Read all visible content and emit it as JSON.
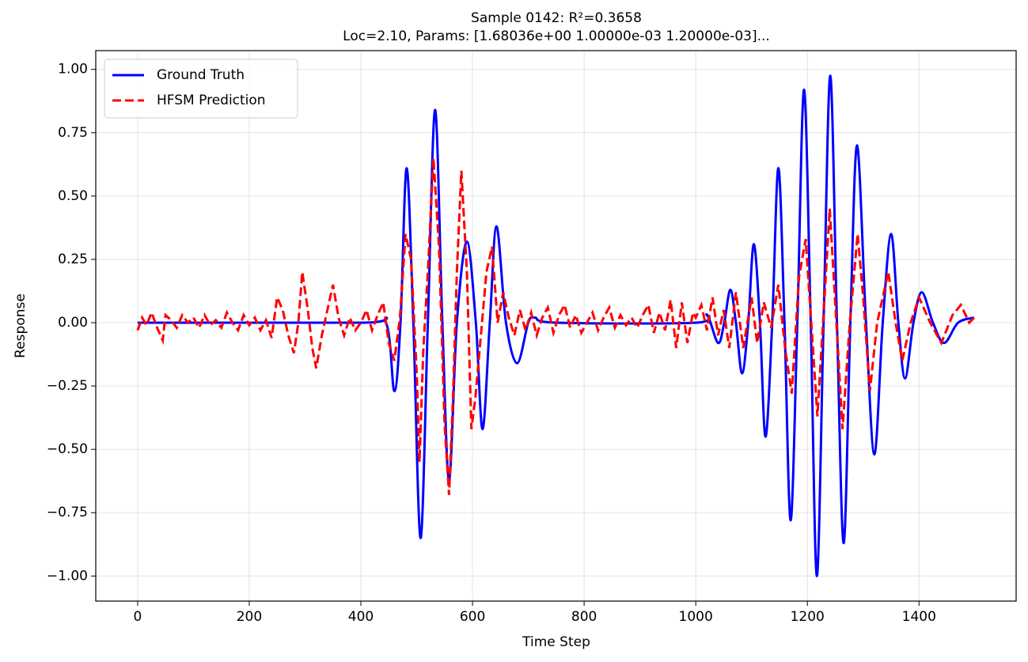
{
  "chart_data": {
    "type": "line",
    "title": "Sample 0142: R²=0.3658",
    "subtitle": "Loc=2.10, Params: [1.68036e+00 1.00000e-03 1.20000e-03]...",
    "x_label": "Time Step",
    "y_label": "Response",
    "xlim": [
      -75,
      1574
    ],
    "ylim": [
      -1.099,
      1.074
    ],
    "xticks": [
      0,
      200,
      400,
      600,
      800,
      1000,
      1200,
      1400
    ],
    "yticks": [
      {
        "value": -1,
        "label": "−1.00"
      },
      {
        "value": -0.75,
        "label": "−0.75"
      },
      {
        "value": -0.5,
        "label": "−0.50"
      },
      {
        "value": -0.25,
        "label": "−0.25"
      },
      {
        "value": 0,
        "label": "0.00"
      },
      {
        "value": 0.25,
        "label": "0.25"
      },
      {
        "value": 0.5,
        "label": "0.50"
      },
      {
        "value": 0.75,
        "label": "0.75"
      },
      {
        "value": 1,
        "label": "1.00"
      }
    ],
    "grid": true,
    "legend": "upper-left",
    "series": [
      {
        "name": "Ground Truth",
        "color": "#0000ff",
        "style": "solid",
        "smooth": true,
        "x": [
          0,
          400,
          445,
          460,
          471,
          482,
          494,
          507,
          520,
          533,
          546,
          558,
          572,
          590,
          606,
          618,
          631,
          643,
          660,
          680,
          700,
          712,
          750,
          1000,
          1020,
          1040,
          1051,
          1062,
          1072,
          1083,
          1094,
          1104,
          1115,
          1125,
          1137,
          1148,
          1159,
          1170,
          1182,
          1194,
          1206,
          1217,
          1229,
          1241,
          1253,
          1265,
          1277,
          1289,
          1305,
          1320,
          1335,
          1350,
          1363,
          1375,
          1390,
          1405,
          1425,
          1445,
          1470,
          1499
        ],
        "values": [
          0,
          0,
          0,
          -0.27,
          0,
          0.61,
          0,
          -0.85,
          0,
          0.84,
          0,
          -0.62,
          0,
          0.32,
          0,
          -0.42,
          0,
          0.38,
          0,
          -0.16,
          0,
          0.02,
          0,
          0,
          0.03,
          -0.08,
          0,
          0.13,
          0,
          -0.2,
          0,
          0.31,
          0,
          -0.45,
          0,
          0.61,
          0,
          -0.78,
          0,
          0.92,
          0,
          -1.0,
          0,
          0.975,
          0,
          -0.87,
          0,
          0.7,
          0,
          -0.52,
          0,
          0.35,
          0,
          -0.22,
          0,
          0.12,
          0,
          -0.08,
          0,
          0.02
        ]
      },
      {
        "name": "HFSM Prediction",
        "color": "#ff0000",
        "style": "dashed",
        "smooth": false,
        "x": [
          0,
          8,
          16,
          25,
          35,
          45,
          50,
          60,
          70,
          80,
          90,
          100,
          110,
          120,
          130,
          140,
          150,
          160,
          170,
          180,
          190,
          200,
          210,
          220,
          230,
          240,
          250,
          260,
          270,
          280,
          288,
          295,
          305,
          313,
          320,
          330,
          340,
          350,
          360,
          370,
          380,
          390,
          400,
          410,
          420,
          430,
          440,
          450,
          460,
          470,
          480,
          490,
          500,
          505,
          512,
          520,
          530,
          540,
          550,
          558,
          565,
          572,
          580,
          590,
          598,
          605,
          615,
          625,
          635,
          645,
          655,
          665,
          675,
          685,
          695,
          705,
          715,
          725,
          735,
          745,
          755,
          765,
          775,
          785,
          795,
          805,
          815,
          825,
          835,
          845,
          855,
          865,
          875,
          885,
          895,
          905,
          915,
          925,
          935,
          945,
          955,
          965,
          975,
          985,
          995,
          1000,
          1010,
          1020,
          1030,
          1040,
          1050,
          1060,
          1072,
          1085,
          1100,
          1110,
          1122,
          1135,
          1148,
          1160,
          1172,
          1185,
          1197,
          1207,
          1218,
          1228,
          1240,
          1252,
          1263,
          1276,
          1290,
          1300,
          1312,
          1325,
          1345,
          1358,
          1370,
          1385,
          1400,
          1420,
          1440,
          1460,
          1475,
          1490,
          1499
        ],
        "values": [
          -0.03,
          0.02,
          -0.01,
          0.04,
          -0.02,
          -0.07,
          0.03,
          0.01,
          -0.02,
          0.03,
          0.0,
          0.02,
          -0.02,
          0.03,
          -0.01,
          0.01,
          -0.02,
          0.04,
          0.0,
          -0.03,
          0.03,
          -0.01,
          0.02,
          -0.03,
          0.01,
          -0.06,
          0.1,
          0.05,
          -0.05,
          -0.12,
          0.0,
          0.2,
          0.05,
          -0.1,
          -0.18,
          -0.05,
          0.05,
          0.15,
          0.02,
          -0.05,
          0.02,
          -0.03,
          0.0,
          0.05,
          -0.03,
          0.03,
          0.08,
          -0.08,
          -0.15,
          0.02,
          0.35,
          0.25,
          -0.2,
          -0.55,
          -0.1,
          0.2,
          0.65,
          0.3,
          -0.4,
          -0.68,
          -0.3,
          0.2,
          0.6,
          0.2,
          -0.42,
          -0.3,
          -0.05,
          0.2,
          0.3,
          0.0,
          0.12,
          0.02,
          -0.05,
          0.05,
          -0.03,
          0.04,
          -0.05,
          0.02,
          0.06,
          -0.04,
          0.03,
          0.07,
          -0.02,
          0.03,
          -0.04,
          0.0,
          0.04,
          -0.03,
          0.02,
          0.06,
          -0.02,
          0.03,
          -0.01,
          0.02,
          -0.02,
          0.03,
          0.07,
          -0.04,
          0.04,
          -0.03,
          0.09,
          -0.1,
          0.08,
          -0.08,
          0.04,
          0.02,
          0.07,
          -0.03,
          0.1,
          -0.05,
          0.05,
          -0.1,
          0.12,
          -0.1,
          0.1,
          -0.08,
          0.08,
          -0.02,
          0.15,
          -0.1,
          -0.28,
          0.18,
          0.33,
          0.0,
          -0.37,
          0.0,
          0.45,
          0.0,
          -0.42,
          0.0,
          0.35,
          0.1,
          -0.27,
          0.0,
          0.2,
          0.0,
          -0.15,
          0.0,
          0.1,
          0.0,
          -0.08,
          0.03,
          0.07,
          0.0,
          0.02
        ]
      }
    ]
  }
}
